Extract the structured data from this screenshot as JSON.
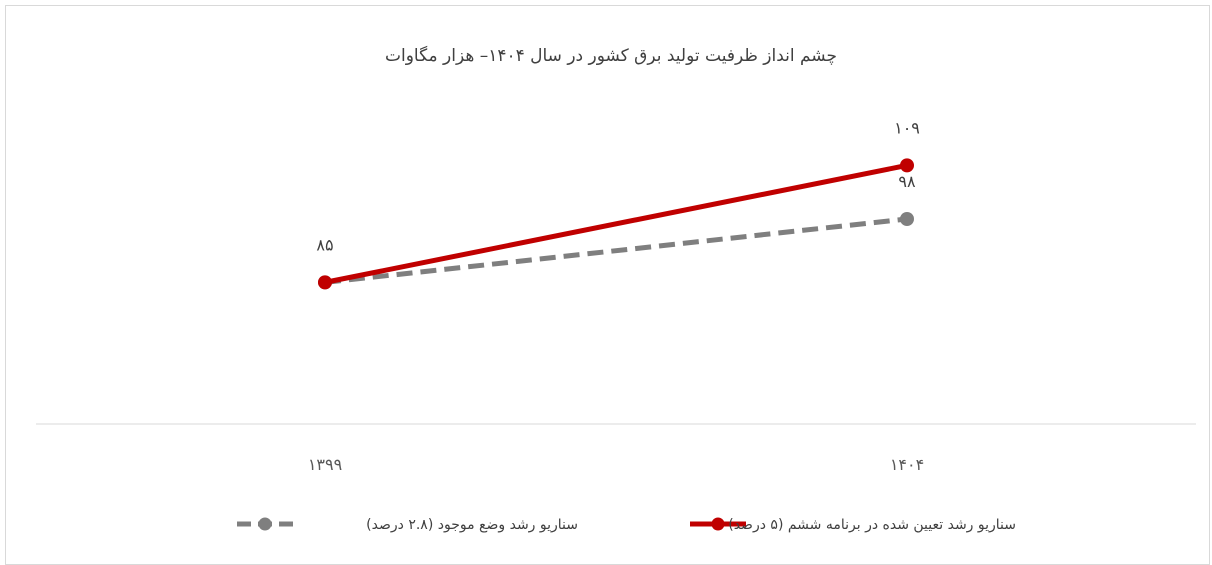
{
  "chart_data": {
    "type": "line",
    "title": "چشم انداز ظرفیت تولید برق کشور در سال ۱۴۰۴– هزار مگاوات",
    "categories": [
      "۱۳۹۹",
      "۱۴۰۴"
    ],
    "x": [
      1399,
      1404
    ],
    "series": [
      {
        "name": "سناریو رشد تعیین شده در برنامه ششم (۵ درصد)",
        "values": [
          85,
          109
        ],
        "labels": [
          "۸۵",
          "۱۰۹"
        ],
        "color": "#c00000",
        "style": "solid"
      },
      {
        "name": "سناریو رشد وضع موجود (۲.۸ درصد)",
        "values": [
          85,
          98
        ],
        "labels": [
          "",
          "۹۸"
        ],
        "color": "#7f7f7f",
        "style": "dashed"
      }
    ],
    "ylim": [
      50,
      130
    ],
    "grid": false,
    "legend": "bottom"
  },
  "colors": {
    "axis": "#d9d9d9",
    "frame": "#d9d9d9"
  }
}
